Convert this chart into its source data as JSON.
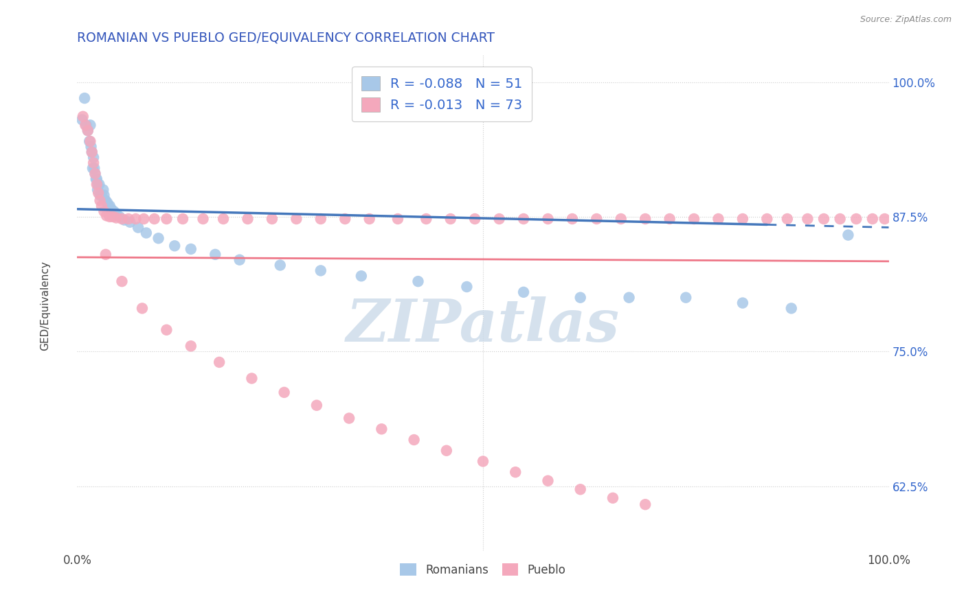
{
  "title": "ROMANIAN VS PUEBLO GED/EQUIVALENCY CORRELATION CHART",
  "source": "Source: ZipAtlas.com",
  "ylabel": "GED/Equivalency",
  "y_ticks": [
    "62.5%",
    "75.0%",
    "87.5%",
    "100.0%"
  ],
  "y_tick_vals": [
    0.625,
    0.75,
    0.875,
    1.0
  ],
  "x_range": [
    0.0,
    1.0
  ],
  "y_range": [
    0.565,
    1.025
  ],
  "r1": -0.088,
  "n1": 51,
  "r2": -0.013,
  "n2": 73,
  "legend_color1": "#a8c8e8",
  "legend_color2": "#f4a8bc",
  "background_color": "#ffffff",
  "grid_color": "#cccccc",
  "title_color": "#3355bb",
  "source_color": "#888888",
  "romanian_color": "#a8c8e8",
  "pueblo_color": "#f4a8bc",
  "line1_color": "#4477bb",
  "line2_color": "#ee7788",
  "watermark_color": "#ccdde8",
  "romanians_x": [
    0.006,
    0.009,
    0.011,
    0.013,
    0.015,
    0.016,
    0.017,
    0.018,
    0.019,
    0.02,
    0.021,
    0.022,
    0.023,
    0.024,
    0.025,
    0.025,
    0.027,
    0.028,
    0.03,
    0.032,
    0.033,
    0.034,
    0.035,
    0.037,
    0.038,
    0.04,
    0.042,
    0.045,
    0.048,
    0.052,
    0.058,
    0.065,
    0.075,
    0.085,
    0.1,
    0.12,
    0.14,
    0.17,
    0.2,
    0.25,
    0.3,
    0.35,
    0.42,
    0.48,
    0.55,
    0.62,
    0.68,
    0.75,
    0.82,
    0.88,
    0.95
  ],
  "romanians_y": [
    0.965,
    0.985,
    0.96,
    0.955,
    0.945,
    0.96,
    0.94,
    0.935,
    0.92,
    0.93,
    0.92,
    0.915,
    0.91,
    0.91,
    0.905,
    0.9,
    0.905,
    0.895,
    0.895,
    0.9,
    0.895,
    0.89,
    0.89,
    0.888,
    0.885,
    0.885,
    0.882,
    0.88,
    0.878,
    0.875,
    0.872,
    0.87,
    0.865,
    0.86,
    0.855,
    0.848,
    0.845,
    0.84,
    0.835,
    0.83,
    0.825,
    0.82,
    0.815,
    0.81,
    0.805,
    0.8,
    0.8,
    0.8,
    0.795,
    0.79,
    0.858
  ],
  "pueblo_x": [
    0.007,
    0.01,
    0.013,
    0.016,
    0.018,
    0.02,
    0.022,
    0.024,
    0.026,
    0.028,
    0.03,
    0.033,
    0.036,
    0.04,
    0.044,
    0.048,
    0.055,
    0.063,
    0.072,
    0.082,
    0.095,
    0.11,
    0.13,
    0.155,
    0.18,
    0.21,
    0.24,
    0.27,
    0.3,
    0.33,
    0.36,
    0.395,
    0.43,
    0.46,
    0.49,
    0.52,
    0.55,
    0.58,
    0.61,
    0.64,
    0.67,
    0.7,
    0.73,
    0.76,
    0.79,
    0.82,
    0.85,
    0.875,
    0.9,
    0.92,
    0.94,
    0.96,
    0.98,
    0.995,
    0.035,
    0.055,
    0.08,
    0.11,
    0.14,
    0.175,
    0.215,
    0.255,
    0.295,
    0.335,
    0.375,
    0.415,
    0.455,
    0.5,
    0.54,
    0.58,
    0.62,
    0.66,
    0.7
  ],
  "pueblo_y": [
    0.968,
    0.96,
    0.955,
    0.945,
    0.935,
    0.925,
    0.915,
    0.905,
    0.897,
    0.89,
    0.885,
    0.88,
    0.876,
    0.875,
    0.875,
    0.874,
    0.873,
    0.873,
    0.873,
    0.873,
    0.873,
    0.873,
    0.873,
    0.873,
    0.873,
    0.873,
    0.873,
    0.873,
    0.873,
    0.873,
    0.873,
    0.873,
    0.873,
    0.873,
    0.873,
    0.873,
    0.873,
    0.873,
    0.873,
    0.873,
    0.873,
    0.873,
    0.873,
    0.873,
    0.873,
    0.873,
    0.873,
    0.873,
    0.873,
    0.873,
    0.873,
    0.873,
    0.873,
    0.873,
    0.84,
    0.815,
    0.79,
    0.77,
    0.755,
    0.74,
    0.725,
    0.712,
    0.7,
    0.688,
    0.678,
    0.668,
    0.658,
    0.648,
    0.638,
    0.63,
    0.622,
    0.614,
    0.608
  ]
}
